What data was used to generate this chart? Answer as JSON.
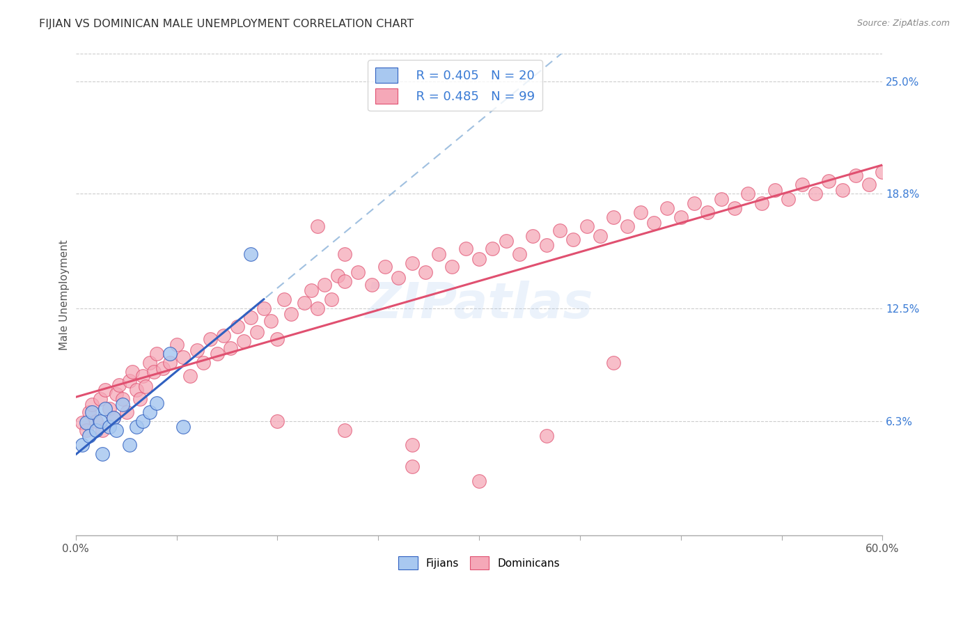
{
  "title": "FIJIAN VS DOMINICAN MALE UNEMPLOYMENT CORRELATION CHART",
  "source": "Source: ZipAtlas.com",
  "ylabel": "Male Unemployment",
  "ytick_labels": [
    "6.3%",
    "12.5%",
    "18.8%",
    "25.0%"
  ],
  "ytick_values": [
    0.063,
    0.125,
    0.188,
    0.25
  ],
  "xlim": [
    0.0,
    0.6
  ],
  "ylim": [
    0.0,
    0.265
  ],
  "fijian_color": "#a8c8f0",
  "dominican_color": "#f5a8b8",
  "fijian_line_color": "#3060c0",
  "dominican_line_color": "#e05070",
  "dashed_line_color": "#a0c0e0",
  "R_fijian": 0.405,
  "N_fijian": 20,
  "R_dominican": 0.485,
  "N_dominican": 99,
  "legend_label_fijian": "Fijians",
  "legend_label_dominican": "Dominicans",
  "background_color": "#ffffff",
  "grid_color": "#cccccc",
  "watermark": "ZIPatlas",
  "fijian_x": [
    0.005,
    0.008,
    0.01,
    0.012,
    0.015,
    0.018,
    0.02,
    0.022,
    0.025,
    0.028,
    0.03,
    0.035,
    0.04,
    0.045,
    0.05,
    0.055,
    0.06,
    0.07,
    0.08,
    0.13
  ],
  "fijian_y": [
    0.05,
    0.062,
    0.055,
    0.068,
    0.058,
    0.063,
    0.045,
    0.07,
    0.06,
    0.065,
    0.058,
    0.072,
    0.05,
    0.06,
    0.063,
    0.068,
    0.073,
    0.1,
    0.06,
    0.155
  ],
  "dominican_x": [
    0.005,
    0.008,
    0.01,
    0.012,
    0.015,
    0.018,
    0.02,
    0.022,
    0.025,
    0.028,
    0.03,
    0.032,
    0.035,
    0.038,
    0.04,
    0.042,
    0.045,
    0.048,
    0.05,
    0.052,
    0.055,
    0.058,
    0.06,
    0.065,
    0.07,
    0.075,
    0.08,
    0.085,
    0.09,
    0.095,
    0.1,
    0.105,
    0.11,
    0.115,
    0.12,
    0.125,
    0.13,
    0.135,
    0.14,
    0.145,
    0.15,
    0.155,
    0.16,
    0.17,
    0.175,
    0.18,
    0.185,
    0.19,
    0.195,
    0.2,
    0.21,
    0.22,
    0.23,
    0.24,
    0.25,
    0.26,
    0.27,
    0.28,
    0.29,
    0.3,
    0.31,
    0.32,
    0.33,
    0.34,
    0.35,
    0.36,
    0.37,
    0.38,
    0.39,
    0.4,
    0.41,
    0.42,
    0.43,
    0.44,
    0.45,
    0.46,
    0.47,
    0.48,
    0.49,
    0.5,
    0.51,
    0.52,
    0.53,
    0.54,
    0.55,
    0.56,
    0.57,
    0.58,
    0.59,
    0.6,
    0.15,
    0.2,
    0.25,
    0.3,
    0.35,
    0.4,
    0.2,
    0.25,
    0.18
  ],
  "dominican_y": [
    0.062,
    0.058,
    0.068,
    0.072,
    0.063,
    0.075,
    0.058,
    0.08,
    0.07,
    0.065,
    0.078,
    0.083,
    0.075,
    0.068,
    0.085,
    0.09,
    0.08,
    0.075,
    0.088,
    0.082,
    0.095,
    0.09,
    0.1,
    0.092,
    0.095,
    0.105,
    0.098,
    0.088,
    0.102,
    0.095,
    0.108,
    0.1,
    0.11,
    0.103,
    0.115,
    0.107,
    0.12,
    0.112,
    0.125,
    0.118,
    0.108,
    0.13,
    0.122,
    0.128,
    0.135,
    0.125,
    0.138,
    0.13,
    0.143,
    0.14,
    0.145,
    0.138,
    0.148,
    0.142,
    0.15,
    0.145,
    0.155,
    0.148,
    0.158,
    0.152,
    0.158,
    0.162,
    0.155,
    0.165,
    0.16,
    0.168,
    0.163,
    0.17,
    0.165,
    0.175,
    0.17,
    0.178,
    0.172,
    0.18,
    0.175,
    0.183,
    0.178,
    0.185,
    0.18,
    0.188,
    0.183,
    0.19,
    0.185,
    0.193,
    0.188,
    0.195,
    0.19,
    0.198,
    0.193,
    0.2,
    0.063,
    0.058,
    0.038,
    0.03,
    0.055,
    0.095,
    0.155,
    0.05,
    0.17
  ]
}
